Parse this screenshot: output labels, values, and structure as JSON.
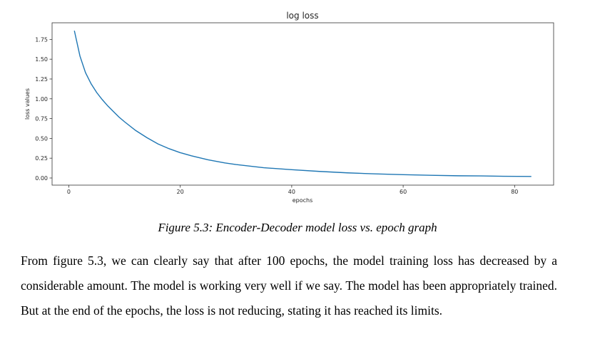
{
  "chart_data": {
    "type": "line",
    "title": "log loss",
    "xlabel": "epochs",
    "ylabel": "loss values",
    "xlim": [
      -3,
      87
    ],
    "ylim": [
      -0.09,
      1.96
    ],
    "xticks": [
      0,
      20,
      40,
      60,
      80
    ],
    "xtick_labels": [
      "0",
      "20",
      "40",
      "60",
      "80"
    ],
    "yticks": [
      0.0,
      0.25,
      0.5,
      0.75,
      1.0,
      1.25,
      1.5,
      1.75
    ],
    "ytick_labels": [
      "0.00",
      "0.25",
      "0.50",
      "0.75",
      "1.00",
      "1.25",
      "1.50",
      "1.75"
    ],
    "grid": false,
    "color": "#1f77b4",
    "series": [
      {
        "x": [
          1,
          2,
          3,
          4,
          5,
          6,
          7,
          8,
          9,
          10,
          12,
          14,
          16,
          18,
          20,
          22,
          25,
          28,
          30,
          35,
          40,
          45,
          50,
          55,
          60,
          65,
          70,
          74,
          78,
          83
        ],
        "values": [
          1.86,
          1.54,
          1.33,
          1.19,
          1.08,
          0.99,
          0.91,
          0.84,
          0.77,
          0.71,
          0.6,
          0.51,
          0.43,
          0.37,
          0.32,
          0.28,
          0.23,
          0.19,
          0.17,
          0.13,
          0.105,
          0.083,
          0.065,
          0.052,
          0.042,
          0.034,
          0.028,
          0.026,
          0.022,
          0.02
        ]
      }
    ]
  },
  "caption": "Figure 5.3: Encoder-Decoder model loss vs. epoch graph",
  "paragraph": "From figure 5.3, we can clearly say that after 100 epochs, the model training loss has decreased by a considerable amount. The model is working very well if we say. The model has been appropriately trained. But at the end of the epochs, the loss is not reducing, stating it has reached its limits."
}
